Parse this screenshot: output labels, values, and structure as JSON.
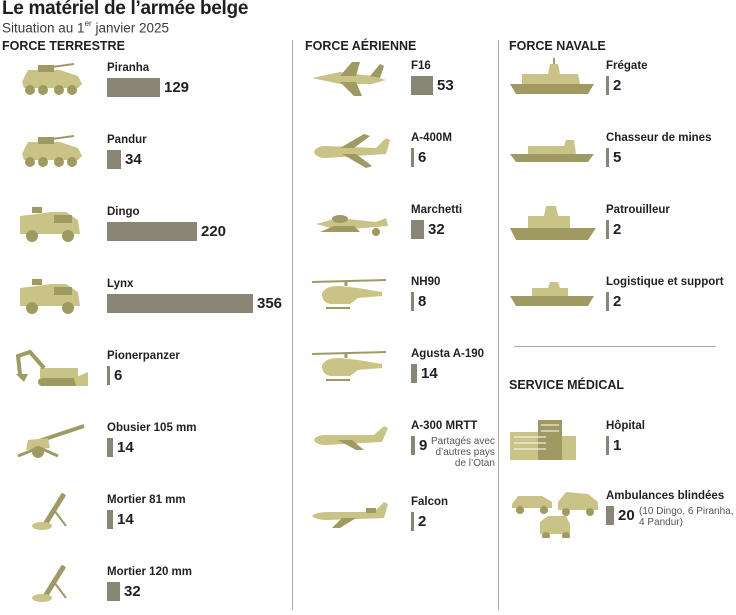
{
  "title": "Le matériel de l’armée belge",
  "subtitle": {
    "prefix": "Situation au 1",
    "sup": "er",
    "suffix": " janvier 2025"
  },
  "colors": {
    "bar": "#8a8675",
    "illustration": "#c9c386",
    "illustration_dark": "#9f9a62",
    "separator": "#a9a9a9"
  },
  "sections": [
    {
      "key": "terrestre",
      "title": "FORCE TERRESTRE"
    },
    {
      "key": "aerienne",
      "title": "FORCE AÉRIENNE"
    },
    {
      "key": "navale",
      "title": "FORCE NAVALE"
    },
    {
      "key": "medical",
      "title": "SERVICE MÉDICAL"
    }
  ],
  "chart_data": {
    "type": "bar",
    "title": "Le matériel de l’armée belge",
    "subtitle": "Situation au 1er janvier 2025",
    "value_scale_max": 356,
    "series": [
      {
        "name": "FORCE TERRESTRE",
        "items": [
          {
            "label": "Piranha",
            "value": 129,
            "icon": "wheeled-apc-icon"
          },
          {
            "label": "Pandur",
            "value": 34,
            "icon": "wheeled-apc-icon"
          },
          {
            "label": "Dingo",
            "value": 220,
            "icon": "armored-truck-icon"
          },
          {
            "label": "Lynx",
            "value": 356,
            "icon": "armored-truck-icon"
          },
          {
            "label": "Pionerpanzer",
            "value": 6,
            "icon": "excavator-icon"
          },
          {
            "label": "Obusier 105 mm",
            "value": 14,
            "icon": "howitzer-icon"
          },
          {
            "label": "Mortier 81 mm",
            "value": 14,
            "icon": "mortar-icon"
          },
          {
            "label": "Mortier 120 mm",
            "value": 32,
            "icon": "mortar-icon"
          }
        ]
      },
      {
        "name": "FORCE AÉRIENNE",
        "items": [
          {
            "label": "F16",
            "value": 53,
            "icon": "fighter-jet-icon"
          },
          {
            "label": "A-400M",
            "value": 6,
            "icon": "cargo-plane-icon"
          },
          {
            "label": "Marchetti",
            "value": 32,
            "icon": "trainer-plane-icon"
          },
          {
            "label": "NH90",
            "value": 8,
            "icon": "helicopter-icon"
          },
          {
            "label": "Agusta A-190",
            "value": 14,
            "icon": "helicopter-icon"
          },
          {
            "label": "A-300 MRTT",
            "value": 9,
            "icon": "airliner-icon",
            "note": [
              "Partagés avec",
              "d’autres pays",
              "de l’Otan"
            ]
          },
          {
            "label": "Falcon",
            "value": 2,
            "icon": "business-jet-icon"
          }
        ]
      },
      {
        "name": "FORCE NAVALE",
        "items": [
          {
            "label": "Frégate",
            "value": 2,
            "icon": "frigate-icon"
          },
          {
            "label": "Chasseur de mines",
            "value": 5,
            "icon": "minehunter-icon"
          },
          {
            "label": "Patrouilleur",
            "value": 2,
            "icon": "patrol-ship-icon"
          },
          {
            "label": "Logistique et support",
            "value": 2,
            "icon": "support-ship-icon"
          }
        ]
      },
      {
        "name": "SERVICE MÉDICAL",
        "items": [
          {
            "label": "Hôpital",
            "value": 1,
            "icon": "hospital-icon"
          },
          {
            "label": "Ambulances blindées",
            "value": 20,
            "icon": "ambulance-group-icon",
            "note": [
              "(10 Dingo, 6 Piranha,",
              "4 Pandur)"
            ]
          }
        ]
      }
    ]
  }
}
